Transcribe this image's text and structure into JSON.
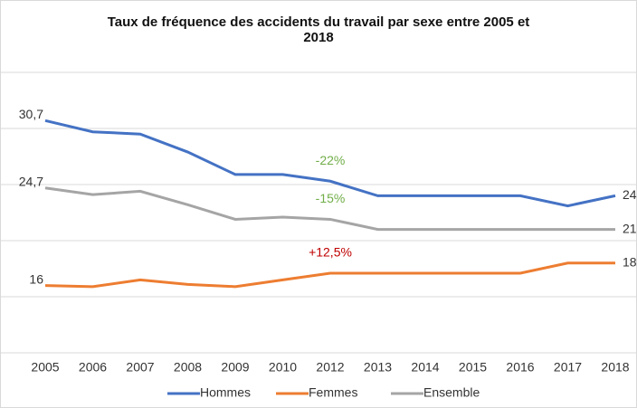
{
  "chart_data": {
    "type": "line",
    "title": "Taux de fréquence des accidents du travail par sexe entre 2005 et 2018",
    "categories": [
      "2005",
      "2006",
      "2007",
      "2008",
      "2009",
      "2010",
      "2012",
      "2013",
      "2014",
      "2015",
      "2016",
      "2017",
      "2018"
    ],
    "series": [
      {
        "name": "Hommes",
        "color": "#4472c4",
        "values": [
          30.7,
          29.7,
          29.5,
          27.9,
          25.9,
          25.9,
          25.3,
          24,
          24,
          24,
          24,
          23.1,
          24
        ],
        "value_labels": [
          "30,7",
          null,
          null,
          null,
          null,
          null,
          null,
          null,
          null,
          null,
          null,
          null,
          "24"
        ]
      },
      {
        "name": "Femmes",
        "color": "#ed7d31",
        "values": [
          16,
          15.9,
          16.5,
          16.1,
          15.9,
          16.5,
          17.1,
          17.1,
          17.1,
          17.1,
          17.1,
          18,
          18
        ],
        "value_labels": [
          "16",
          null,
          null,
          null,
          null,
          null,
          null,
          null,
          null,
          null,
          null,
          null,
          "18"
        ]
      },
      {
        "name": "Ensemble",
        "color": "#a5a5a5",
        "values": [
          24.7,
          24.1,
          24.4,
          23.2,
          21.9,
          22.1,
          21.9,
          21,
          21,
          21,
          21,
          21,
          21
        ],
        "value_labels": [
          "24,7",
          null,
          null,
          null,
          null,
          null,
          null,
          null,
          null,
          null,
          null,
          null,
          "21"
        ]
      }
    ],
    "annotations": [
      {
        "text": "-22%",
        "color": "#70ad47",
        "series": 0,
        "category": 6
      },
      {
        "text": "-15%",
        "color": "#70ad47",
        "series": 2,
        "category": 6
      },
      {
        "text": "+12,5%",
        "color": "#c00000",
        "series": 1,
        "category": 6
      }
    ],
    "ylim": [
      10,
      35
    ],
    "yticks": [
      10,
      15,
      20,
      25,
      30,
      35
    ],
    "grid": true
  }
}
